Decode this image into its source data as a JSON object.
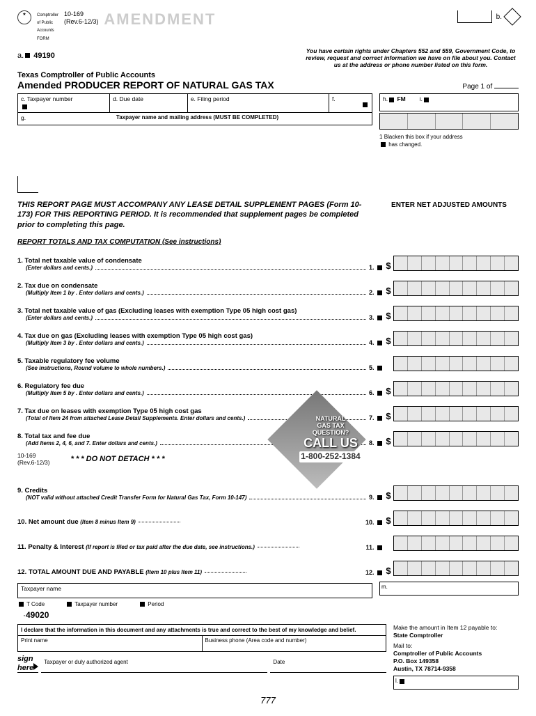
{
  "form": {
    "number": "10-169",
    "rev": "(Rev.6-12/3)",
    "watermark": "AMENDMENT",
    "b_label": "b.",
    "a_label": "a.",
    "a_code": "49190"
  },
  "rights": "You have certain rights under Chapters 552 and 559, Government Code, to review, request and correct information we have on file about you. Contact us at the address or phone number listed on this form.",
  "agency": "Texas Comptroller of Public Accounts",
  "title": "Amended PRODUCER REPORT OF NATURAL GAS TAX",
  "page": {
    "label": "Page 1 of"
  },
  "fields": {
    "c": "c. Taxpayer number",
    "d": "d. Due date",
    "e": "e. Filing period",
    "f": "f.",
    "g": "g.",
    "addr": "Taxpayer name and mailing address (MUST BE COMPLETED)",
    "h": "h.",
    "h2": "FM",
    "i": "i."
  },
  "blacken": {
    "num": "1",
    "text1": "Blacken this box if your address",
    "text2": "has changed."
  },
  "instruction": "THIS REPORT PAGE MUST ACCOMPANY ANY LEASE DETAIL SUPPLEMENT PAGES (Form 10-173) FOR THIS REPORTING PERIOD. It is recommended that supplement pages be completed prior to completing this page.",
  "section_hdr": "REPORT TOTALS AND TAX COMPUTATION (See instructions)",
  "enter_net": "ENTER NET ADJUSTED AMOUNTS",
  "items": [
    {
      "n": "1.",
      "t": "Total net taxable value of condensate",
      "s": "(Enter dollars and cents.)",
      "num": "1.",
      "dollar": true
    },
    {
      "n": "2.",
      "t": "Tax due on condensate",
      "s": "(Multiply Item 1 by          . Enter dollars and cents.)",
      "num": "2.",
      "dollar": true
    },
    {
      "n": "3.",
      "t": "Total net taxable value of gas (Excluding leases with exemption Type 05 high cost gas)",
      "s": "(Enter dollars and cents.)",
      "num": "3.",
      "dollar": true
    },
    {
      "n": "4.",
      "t": "Tax due on gas (Excluding leases with exemption Type 05 high cost gas)",
      "s": "(Multiply Item 3 by          . Enter dollars and cents.)",
      "num": "4.",
      "dollar": true
    },
    {
      "n": "5.",
      "t": "Taxable regulatory fee volume",
      "s": "(See instructions, Round volume to whole numbers.)",
      "num": "5.",
      "dollar": false
    },
    {
      "n": "6.",
      "t": "Regulatory fee due",
      "s": "(Multiply Item 5 by          . Enter dollars and cents.)",
      "num": "6.",
      "dollar": true
    },
    {
      "n": "7.",
      "t": "Tax due on leases with exemption Type 05 high cost gas",
      "s": "(Total of Item 24 from attached Lease Detail Supplements. Enter dollars and cents.)",
      "num": "7.",
      "dollar": true
    },
    {
      "n": "8.",
      "t": "Total tax and fee due",
      "s": "(Add Items 2, 4, 6, and 7. Enter dollars and cents.)",
      "num": "8.",
      "dollar": true
    }
  ],
  "detach": "* * * DO NOT DETACH * * *",
  "form_bottom": {
    "num": "10-169",
    "rev": "(Rev.6-12/3)"
  },
  "call": {
    "l1": "NATURAL",
    "l2": "GAS TAX",
    "l3": "QUESTION?",
    "l4": "CALL US",
    "phone": "1-800-252-1384"
  },
  "items2": [
    {
      "n": "9.",
      "t": "Credits",
      "s": "(NOT valid without attached Credit Transfer Form for Natural Gas Tax, Form 10-147)",
      "num": "9.",
      "dollar": true
    },
    {
      "n": "10.",
      "t": "Net amount due",
      "s": "(Item 8 minus Item 9)",
      "num": "10.",
      "dollar": true,
      "inline": true
    },
    {
      "n": "11.",
      "t": "Penalty & Interest",
      "s": "(If report is filed or tax paid after the due date, see instructions.)",
      "num": "11.",
      "dollar": false,
      "inline": true
    },
    {
      "n": "12.",
      "t": "TOTAL AMOUNT DUE AND PAYABLE",
      "s": "(Item 10 plus Item 11)",
      "num": "12.",
      "dollar": true,
      "inline": true
    }
  ],
  "taxpayer_name": "Taxpayer name",
  "bottom": {
    "tcode": "T Code",
    "taxnum": "Taxpayer number",
    "period": "Period",
    "code": "49020"
  },
  "m_label": "m.",
  "declare": "I declare that the information in this document and any attachments is true and correct to the best of my knowledge and belief.",
  "print": {
    "name": "Print name",
    "phone": "Business phone (Area code and number)"
  },
  "sign": {
    "here": "sign\nhere",
    "agent": "Taxpayer or duly authorized agent",
    "date": "Date"
  },
  "payable": {
    "l1": "Make the amount in Item 12 payable to:",
    "l2": "State Comptroller",
    "l3": "Mail to:",
    "l4": "Comptroller of Public Accounts",
    "l5": "P.O. Box 149358",
    "l6": "Austin, TX  78714-9358"
  },
  "l_label": "l.",
  "footer": "777"
}
